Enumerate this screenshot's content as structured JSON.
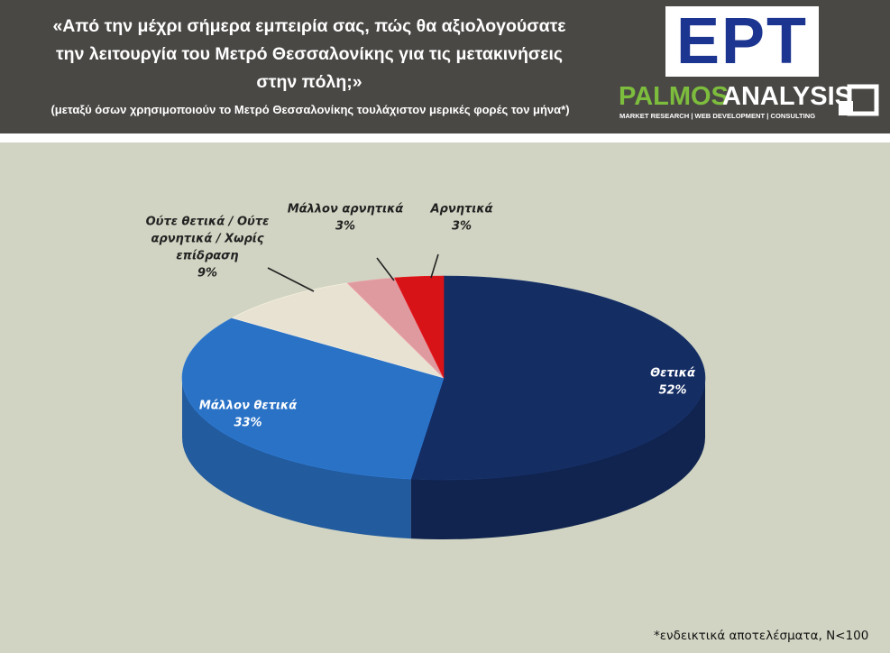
{
  "header": {
    "question": "«Από την μέχρι σήμερα εμπειρία σας, πώς θα αξιολογούσατε την λειτουργία του Μετρό Θεσσαλονίκης για τις μετακινήσεις στην πόλη;»",
    "question_lines": [
      "«Από την μέχρι σήμερα εμπειρία σας, πώς θα αξιολογούσατε",
      "την λειτουργία του Μετρό Θεσσαλονίκης για τις μετακινήσεις",
      "στην πόλη;»"
    ],
    "subtitle": "(μεταξύ όσων χρησιμοποιούν το Μετρό Θεσσαλονίκης τουλάχιστον μερικές φορές τον μήνα*)"
  },
  "logos": {
    "ert": "ΕΡΤ",
    "palmos_part1": "PALMOS",
    "palmos_part2": "ANALYSIS",
    "palmos_tagline": "MARKET RESEARCH | WEB DEVELOPMENT | CONSULTING"
  },
  "chart_data": {
    "type": "pie",
    "style": "3d",
    "slices": [
      {
        "label": "Θετικά",
        "value": 52,
        "value_label": "52%",
        "color": "#142d63"
      },
      {
        "label": "Μάλλον θετικά",
        "value": 33,
        "value_label": "33%",
        "color": "#2a72c6"
      },
      {
        "label": "Ούτε θετικά / Ούτε αρνητικά / Χωρίς επίδραση",
        "label_lines": [
          "Ούτε θετικά / Ούτε",
          "αρνητικά / Χωρίς",
          "επίδραση"
        ],
        "value": 9,
        "value_label": "9%",
        "color": "#e8e2d3"
      },
      {
        "label": "Μάλλον αρνητικά",
        "value": 3,
        "value_label": "3%",
        "color": "#df9aa0"
      },
      {
        "label": "Αρνητικά",
        "value": 3,
        "value_label": "3%",
        "color": "#d81318"
      }
    ]
  },
  "footnote": "*ενδεικτικά αποτελέσματα, Ν<100"
}
